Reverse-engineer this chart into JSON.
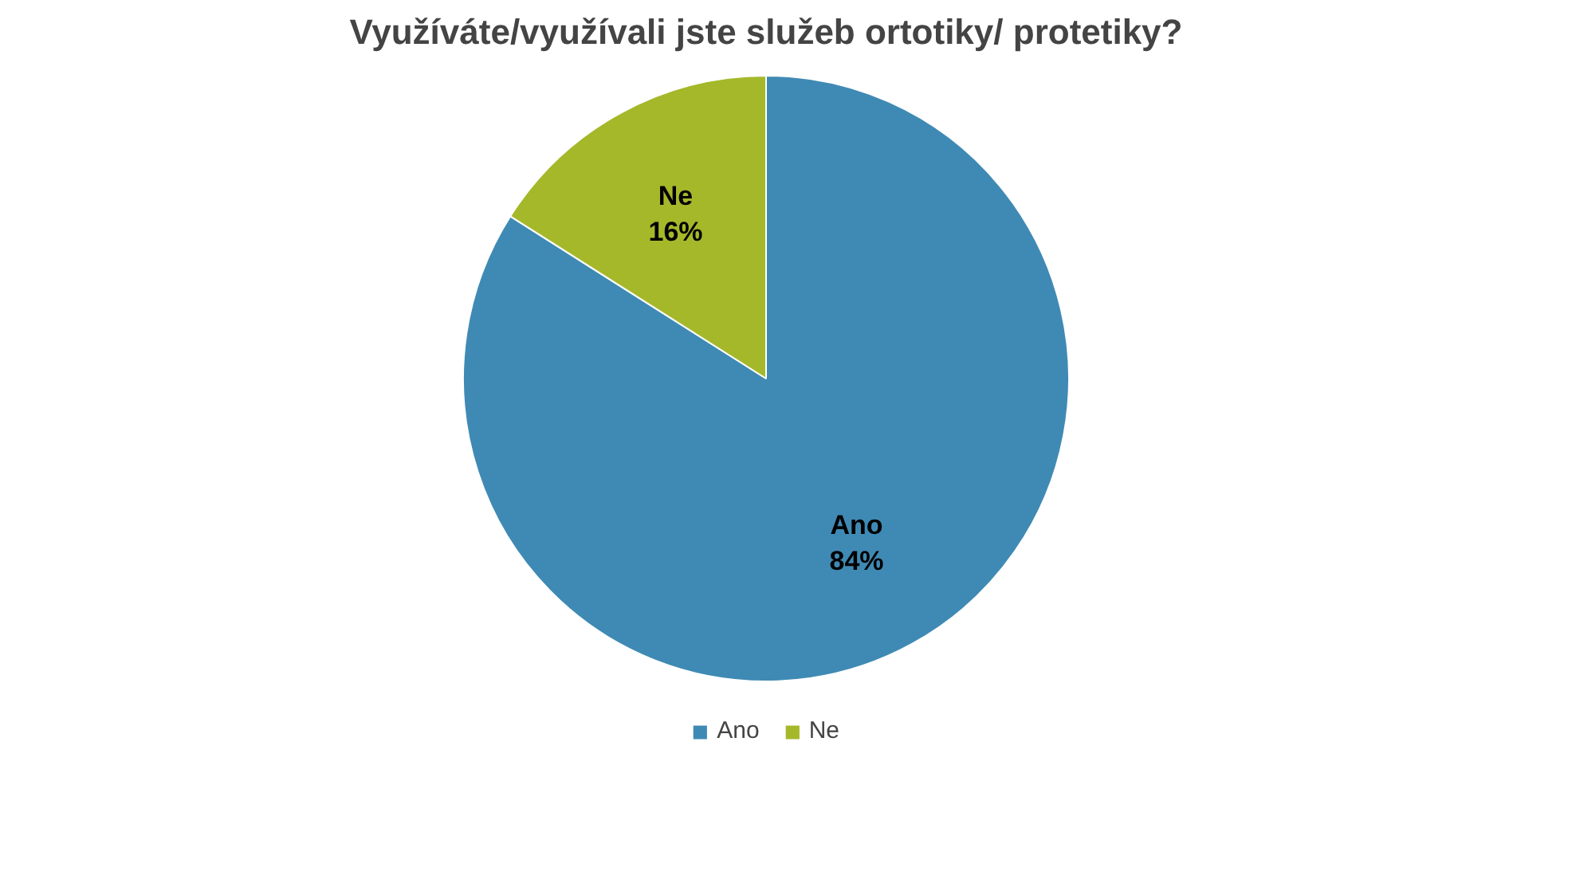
{
  "chart_data": {
    "type": "pie",
    "title": "Využíváte/využívali jste služeb ortotiky/ protetiky?",
    "categories": [
      "Ano",
      "Ne"
    ],
    "values": [
      84,
      16
    ],
    "colors": [
      "#3f8ab4",
      "#a5b82a"
    ],
    "value_labels": [
      "84%",
      "16%"
    ],
    "legend": "bottom"
  }
}
